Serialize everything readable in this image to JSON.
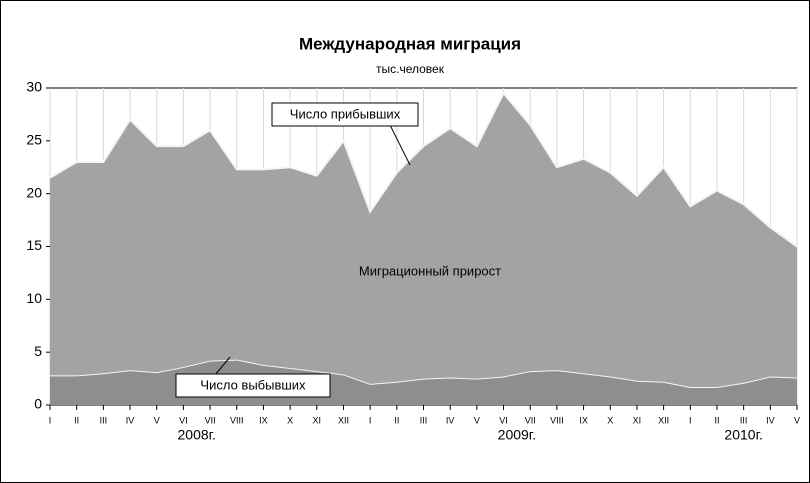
{
  "chart_data": {
    "type": "stacked_area",
    "title": "Международная миграция",
    "subtitle": "тыс.человек",
    "category_groups": [
      {
        "label": "2008г.",
        "categories": [
          "I",
          "II",
          "III",
          "IV",
          "V",
          "VI",
          "VII",
          "VIII",
          "IX",
          "X",
          "XI",
          "XII"
        ]
      },
      {
        "label": "2009г.",
        "categories": [
          "I",
          "II",
          "III",
          "IV",
          "V",
          "VI",
          "VII",
          "VIII",
          "IX",
          "X",
          "XI",
          "XII"
        ]
      },
      {
        "label": "2010г.",
        "categories": [
          "I",
          "II",
          "III",
          "IV",
          "V"
        ]
      }
    ],
    "series": [
      {
        "name": "Число выбывших",
        "color": "#8e8e8e",
        "values": [
          2.8,
          2.8,
          3,
          3.3,
          3.1,
          3.6,
          4.2,
          4.3,
          3.8,
          3.5,
          3.2,
          2.9,
          2,
          2.2,
          2.5,
          2.6,
          2.5,
          2.7,
          3.2,
          3.3,
          3,
          2.7,
          2.3,
          2.2,
          1.7,
          1.7,
          2.1,
          2.7,
          2.6
        ]
      },
      {
        "name": "Миграционный прирост",
        "color": "#a3a3a3",
        "values": [
          18.7,
          20.2,
          20,
          23.7,
          21.4,
          20.9,
          21.8,
          18,
          18.5,
          19,
          18.5,
          22.1,
          16.3,
          19.8,
          22,
          23.6,
          22,
          26.8,
          23.3,
          19.2,
          20.3,
          19.3,
          17.5,
          20.3,
          17.1,
          18.6,
          16.9,
          14.1,
          12.4
        ]
      }
    ],
    "annotation": "Число прибывших",
    "ylim": [
      0,
      30
    ],
    "yticks": [
      0,
      5,
      10,
      15,
      20,
      25,
      30
    ],
    "grid": true
  }
}
